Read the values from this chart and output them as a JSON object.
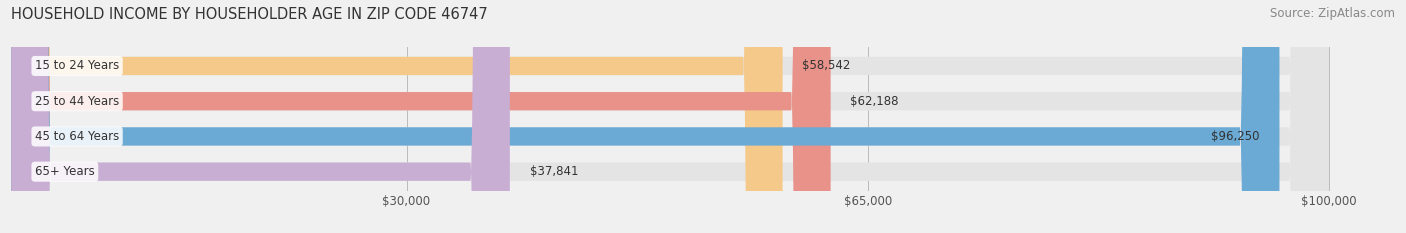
{
  "title": "HOUSEHOLD INCOME BY HOUSEHOLDER AGE IN ZIP CODE 46747",
  "source": "Source: ZipAtlas.com",
  "categories": [
    "15 to 24 Years",
    "25 to 44 Years",
    "45 to 64 Years",
    "65+ Years"
  ],
  "values": [
    58542,
    62188,
    96250,
    37841
  ],
  "bar_colors": [
    "#f5c98a",
    "#e8928a",
    "#6aaad4",
    "#c9aed4"
  ],
  "value_labels": [
    "$58,542",
    "$62,188",
    "$96,250",
    "$37,841"
  ],
  "xmin": 0,
  "xmax": 100000,
  "xticks": [
    30000,
    65000,
    100000
  ],
  "xtick_labels": [
    "$30,000",
    "$65,000",
    "$100,000"
  ],
  "background_color": "#f0f0f0",
  "bar_background_color": "#e4e4e4",
  "title_fontsize": 10.5,
  "source_fontsize": 8.5,
  "label_fontsize": 8.5,
  "bar_height": 0.52
}
